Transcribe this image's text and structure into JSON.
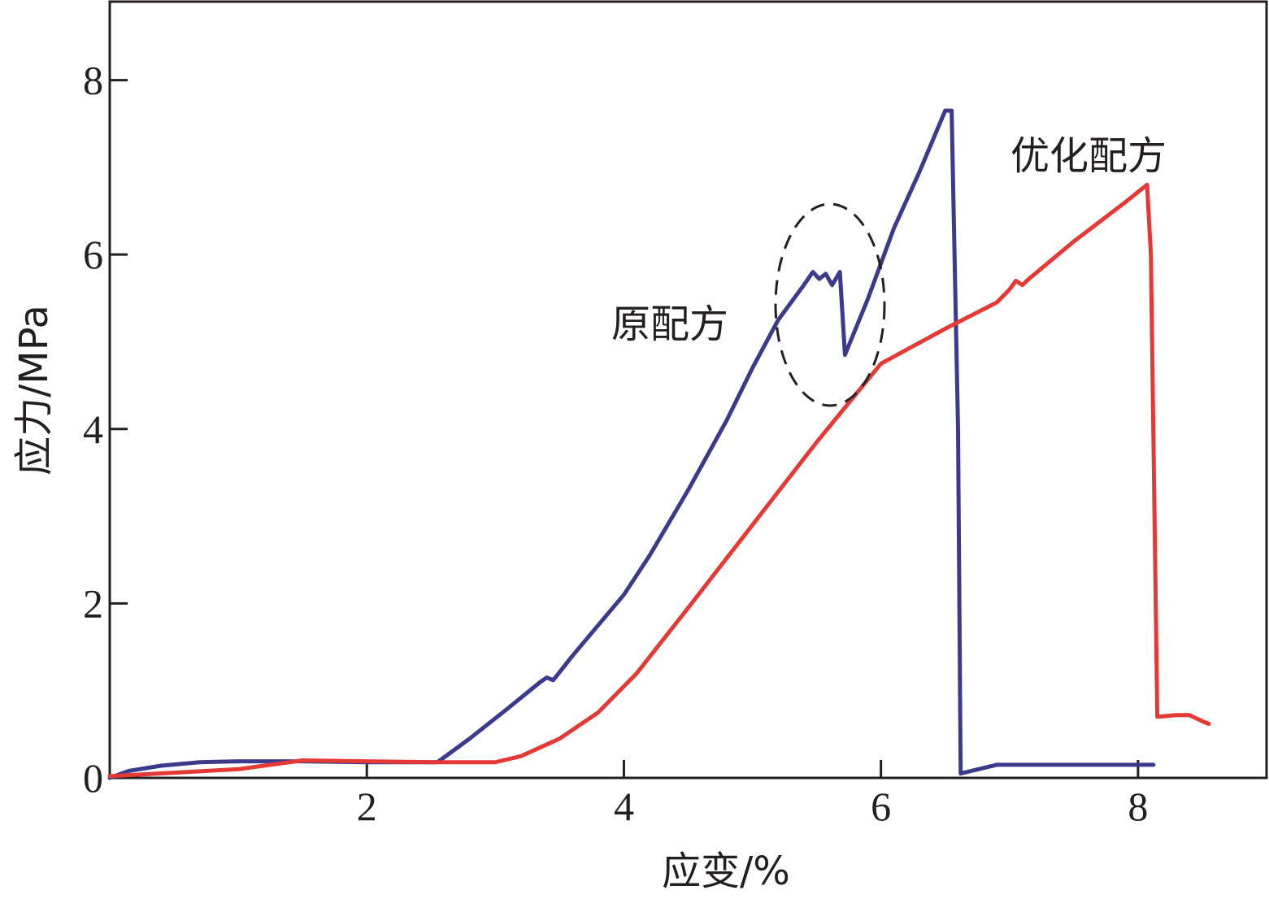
{
  "chart_data": {
    "type": "line",
    "title": "",
    "xlabel": "应变/%",
    "ylabel": "应力/MPa",
    "xlim": [
      0,
      9
    ],
    "ylim": [
      0,
      8.9
    ],
    "xticks": [
      2,
      4,
      6,
      8
    ],
    "yticks": [
      0,
      2,
      4,
      6,
      8
    ],
    "grid": false,
    "series": [
      {
        "name": "原配方",
        "color": "#3b3a8c",
        "x": [
          0.0,
          0.15,
          0.4,
          0.7,
          1.0,
          1.5,
          2.0,
          2.55,
          2.8,
          3.1,
          3.35,
          3.4,
          3.45,
          3.6,
          3.8,
          4.0,
          4.2,
          4.5,
          4.8,
          5.0,
          5.2,
          5.4,
          5.47,
          5.52,
          5.57,
          5.62,
          5.68,
          5.72,
          5.9,
          6.1,
          6.3,
          6.5,
          6.55,
          6.6,
          6.62,
          6.9,
          7.2,
          7.5,
          8.12
        ],
        "y": [
          0.0,
          0.08,
          0.14,
          0.18,
          0.19,
          0.19,
          0.18,
          0.18,
          0.45,
          0.8,
          1.1,
          1.15,
          1.12,
          1.4,
          1.75,
          2.1,
          2.55,
          3.3,
          4.1,
          4.7,
          5.25,
          5.65,
          5.8,
          5.72,
          5.78,
          5.65,
          5.8,
          4.85,
          5.5,
          6.3,
          6.95,
          7.65,
          7.65,
          4.0,
          0.05,
          0.15,
          0.15,
          0.15,
          0.15
        ]
      },
      {
        "name": "优化配方",
        "color": "#e53935",
        "x": [
          0.0,
          0.5,
          1.0,
          1.5,
          2.0,
          2.5,
          3.0,
          3.2,
          3.5,
          3.8,
          4.1,
          4.5,
          5.0,
          5.5,
          6.0,
          6.5,
          6.9,
          7.0,
          7.05,
          7.1,
          7.15,
          7.5,
          7.9,
          8.07,
          8.1,
          8.15,
          8.3,
          8.4,
          8.5,
          8.55
        ],
        "y": [
          0.02,
          0.06,
          0.1,
          0.2,
          0.19,
          0.18,
          0.18,
          0.25,
          0.45,
          0.75,
          1.2,
          1.95,
          2.9,
          3.85,
          4.75,
          5.15,
          5.45,
          5.6,
          5.7,
          5.65,
          5.72,
          6.15,
          6.6,
          6.8,
          6.0,
          0.7,
          0.72,
          0.72,
          0.65,
          0.62
        ]
      }
    ],
    "annotations": [
      {
        "text": "原配方",
        "series": "原配方"
      },
      {
        "text": "优化配方",
        "series": "优化配方"
      }
    ]
  }
}
